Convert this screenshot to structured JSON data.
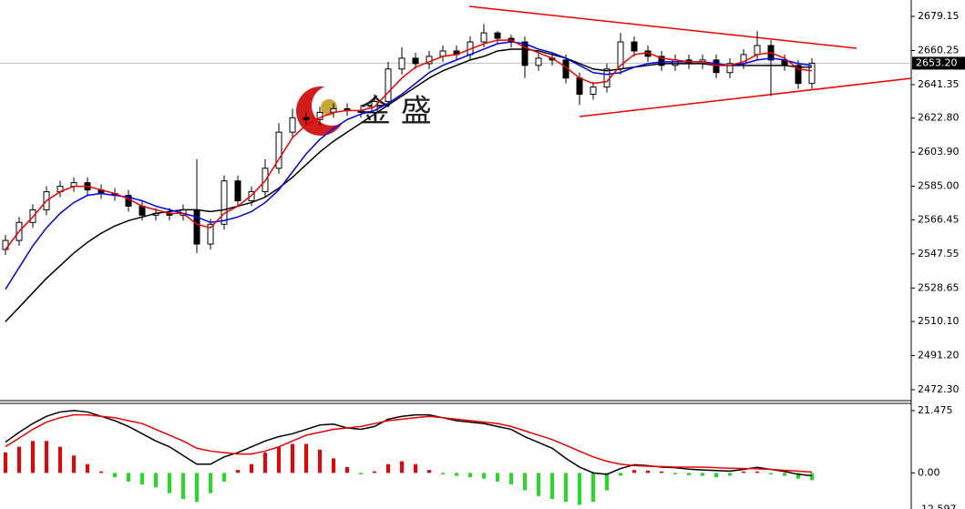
{
  "chart_data": {
    "type": "candlestick",
    "watermark": "金 盛",
    "open": [
      2550,
      2555,
      2565,
      2572,
      2582,
      2585,
      2587,
      2583,
      2581,
      2580,
      2574,
      2569,
      2570,
      2569,
      2572,
      2553,
      2564,
      2588,
      2577,
      2582,
      2595,
      2615,
      2623,
      2622,
      2626,
      2628,
      2627,
      2626,
      2632,
      2650,
      2656,
      2653,
      2657,
      2660,
      2658,
      2665,
      2670,
      2667,
      2665,
      2652,
      2656,
      2655,
      2645,
      2636,
      2640,
      2650,
      2665,
      2660,
      2657,
      2652,
      2655,
      2653,
      2655,
      2648,
      2653,
      2658,
      2663,
      2655,
      2652,
      2642
    ],
    "high": [
      2558,
      2568,
      2575,
      2585,
      2588,
      2590,
      2590,
      2586,
      2584,
      2583,
      2577,
      2573,
      2573,
      2575,
      2600,
      2567,
      2591,
      2591,
      2585,
      2600,
      2620,
      2628,
      2626,
      2629,
      2631,
      2631,
      2630,
      2636,
      2654,
      2662,
      2659,
      2660,
      2663,
      2663,
      2668,
      2675,
      2671,
      2669,
      2668,
      2659,
      2659,
      2658,
      2648,
      2643,
      2653,
      2670,
      2668,
      2663,
      2660,
      2658,
      2658,
      2658,
      2658,
      2656,
      2661,
      2671,
      2666,
      2658,
      2655,
      2656
    ],
    "low": [
      2547,
      2552,
      2562,
      2569,
      2579,
      2582,
      2580,
      2578,
      2577,
      2571,
      2566,
      2566,
      2566,
      2566,
      2548,
      2550,
      2561,
      2574,
      2574,
      2579,
      2592,
      2612,
      2619,
      2619,
      2623,
      2624,
      2623,
      2623,
      2629,
      2647,
      2650,
      2650,
      2654,
      2655,
      2655,
      2662,
      2664,
      2662,
      2645,
      2649,
      2652,
      2642,
      2630,
      2633,
      2637,
      2647,
      2657,
      2654,
      2649,
      2649,
      2650,
      2650,
      2645,
      2645,
      2650,
      2655,
      2635,
      2649,
      2639,
      2639
    ],
    "close": [
      2555,
      2565,
      2572,
      2582,
      2585,
      2587,
      2583,
      2581,
      2580,
      2574,
      2569,
      2570,
      2569,
      2572,
      2553,
      2564,
      2588,
      2577,
      2582,
      2595,
      2615,
      2623,
      2622,
      2626,
      2628,
      2627,
      2626,
      2632,
      2650,
      2656,
      2653,
      2657,
      2660,
      2658,
      2665,
      2670,
      2667,
      2665,
      2652,
      2656,
      2655,
      2645,
      2636,
      2640,
      2650,
      2665,
      2660,
      2657,
      2652,
      2655,
      2653,
      2655,
      2648,
      2653,
      2658,
      2663,
      2655,
      2652,
      2642,
      2653.2
    ],
    "moving_averages": [
      {
        "color": "#000000",
        "values": [
          2510,
          2518,
          2526,
          2534,
          2541,
          2548,
          2554,
          2559,
          2563,
          2566,
          2568,
          2570,
          2571,
          2572,
          2572,
          2571,
          2572,
          2574,
          2576,
          2579,
          2584,
          2590,
          2597,
          2604,
          2610,
          2615,
          2620,
          2625,
          2630,
          2635,
          2640,
          2645,
          2649,
          2652,
          2655,
          2657,
          2660,
          2661,
          2661,
          2660,
          2658,
          2656,
          2653,
          2650,
          2649,
          2650,
          2651,
          2652,
          2653,
          2653,
          2653,
          2653,
          2652,
          2652,
          2652,
          2652,
          2652,
          2652,
          2651,
          2651
        ]
      },
      {
        "color": "#0000ee",
        "values": [
          2528,
          2540,
          2552,
          2562,
          2570,
          2576,
          2580,
          2581,
          2580,
          2579,
          2577,
          2574,
          2572,
          2570,
          2568,
          2565,
          2566,
          2568,
          2571,
          2576,
          2583,
          2593,
          2603,
          2611,
          2617,
          2622,
          2625,
          2627,
          2631,
          2636,
          2642,
          2648,
          2652,
          2655,
          2658,
          2661,
          2664,
          2665,
          2664,
          2661,
          2659,
          2656,
          2652,
          2648,
          2647,
          2648,
          2651,
          2653,
          2654,
          2654,
          2654,
          2654,
          2653,
          2652,
          2653,
          2655,
          2656,
          2655,
          2653,
          2652
        ]
      },
      {
        "color": "#ee0000",
        "values": [
          2550,
          2560,
          2568,
          2577,
          2582,
          2585,
          2585,
          2583,
          2581,
          2578,
          2574,
          2572,
          2570,
          2570,
          2564,
          2562,
          2570,
          2574,
          2580,
          2588,
          2600,
          2612,
          2619,
          2623,
          2626,
          2627,
          2627,
          2629,
          2637,
          2645,
          2651,
          2654,
          2657,
          2658,
          2661,
          2664,
          2666,
          2666,
          2662,
          2659,
          2656,
          2651,
          2645,
          2642,
          2643,
          2652,
          2658,
          2659,
          2656,
          2655,
          2654,
          2654,
          2652,
          2652,
          2654,
          2658,
          2659,
          2656,
          2650,
          2649
        ]
      }
    ],
    "current_price": {
      "value": 2653.2,
      "label": "2653.20"
    },
    "ylim": [
      2466.25,
      2688.23
    ],
    "yticks": [
      {
        "value": 2679.15,
        "label": "2679.15"
      },
      {
        "value": 2660.25,
        "label": "2660.25"
      },
      {
        "value": 2641.35,
        "label": "2641.35"
      },
      {
        "value": 2622.8,
        "label": "2622.80"
      },
      {
        "value": 2603.9,
        "label": "2603.90"
      },
      {
        "value": 2585,
        "label": "2585.00"
      },
      {
        "value": 2566.45,
        "label": "2566.45"
      },
      {
        "value": 2547.55,
        "label": "2547.55"
      },
      {
        "value": 2528.65,
        "label": "2528.65"
      },
      {
        "value": 2510.1,
        "label": "2510.10"
      },
      {
        "value": 2491.2,
        "label": "2491.20"
      },
      {
        "value": 2472.3,
        "label": "2472.30"
      }
    ],
    "macd": {
      "ylim": [
        -12.45,
        23.96
      ],
      "yticks": [
        21.475,
        {
          "value": 0,
          "label": "0.00"
        },
        -12.597
      ],
      "up_color": "#ee0000",
      "down_color": "#22dd22",
      "histogram": [
        7,
        9,
        11,
        11,
        9,
        6,
        3,
        0.5,
        -1.5,
        -3,
        -4,
        -5,
        -7,
        -9,
        -10,
        -7,
        -3,
        1,
        3,
        7,
        9,
        10,
        10,
        8,
        5,
        2,
        -0.5,
        0.5,
        3,
        4,
        3,
        1,
        -0.5,
        -1,
        -1.5,
        -2,
        -3,
        -4,
        -6,
        -8,
        -9,
        -10,
        -11,
        -10,
        -6,
        -1,
        1,
        0.8,
        0.5,
        -0.5,
        -0.8,
        -1,
        -1.5,
        -1,
        0.5,
        0.5,
        -0.5,
        -1,
        -2,
        -2.5
      ],
      "lines": [
        {
          "color": "#000000",
          "values": [
            10.6,
            14,
            17,
            19.5,
            21,
            21.5,
            21,
            19.5,
            18,
            16,
            13.5,
            11,
            9,
            6,
            3,
            3,
            5.5,
            7,
            9,
            11,
            12.5,
            13.5,
            15,
            16.5,
            16.8,
            15.5,
            15,
            16,
            18.5,
            19.5,
            20,
            20,
            19,
            18,
            17.5,
            17,
            16,
            15,
            12.5,
            10.5,
            8.5,
            5,
            2,
            0,
            -0.5,
            1.5,
            2.8,
            2.5,
            2,
            1.8,
            1.3,
            1,
            0.8,
            0.6,
            1.2,
            1.9,
            1.2,
            0.5,
            -0.5,
            -1
          ]
        },
        {
          "color": "#ee0000",
          "values": [
            9,
            12,
            15,
            17.5,
            19,
            20,
            20,
            19.5,
            19,
            18,
            17,
            15,
            13,
            11,
            8.5,
            7.5,
            7,
            6.5,
            6.5,
            7.5,
            9,
            11,
            13,
            14,
            15,
            15.5,
            16,
            17,
            18,
            18.5,
            19,
            19.5,
            19,
            18.5,
            18,
            17.5,
            17,
            16,
            14.5,
            13,
            11.5,
            9.5,
            7.5,
            5.5,
            4,
            3,
            2.5,
            2.3,
            2.2,
            2,
            2,
            2,
            1.8,
            1.6,
            1.5,
            1.4,
            1.2,
            0.9,
            0.6,
            0.3
          ]
        }
      ]
    }
  }
}
